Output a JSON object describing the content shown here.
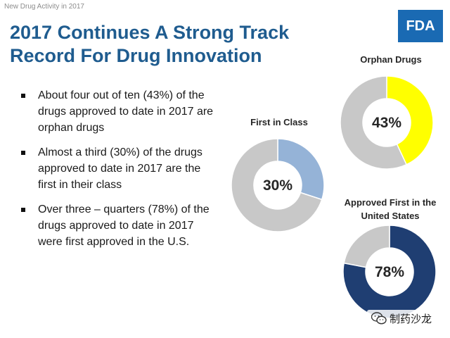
{
  "header": {
    "section": "New Drug Activity in 2017"
  },
  "title": {
    "line1": "2017 Continues A Strong Track",
    "line2": "Record For Drug Innovation"
  },
  "logo": {
    "text": "FDA",
    "color": "#1a6ab3"
  },
  "bullets": [
    "About four out of ten (43%) of the drugs approved to date in 2017 are orphan drugs",
    "Almost a third (30%) of the drugs approved to date in 2017 are the first in their class",
    "Over three – quarters (78%) of the drugs approved to date in 2017 were first approved in the U.S."
  ],
  "chart_data": [
    {
      "type": "pie",
      "title": "First in Class",
      "values": [
        30,
        70
      ],
      "center_label": "30%",
      "colors": [
        "#95b3d7",
        "#c8c8c8"
      ]
    },
    {
      "type": "pie",
      "title": "Orphan Drugs",
      "values": [
        43,
        57
      ],
      "center_label": "43%",
      "colors": [
        "#ffff00",
        "#c8c8c8"
      ]
    },
    {
      "type": "pie",
      "title": "Approved First in the United States",
      "values": [
        78,
        22
      ],
      "center_label": "78%",
      "colors": [
        "#1f3e72",
        "#c8c8c8"
      ]
    }
  ],
  "watermark": {
    "text": "制药沙龙",
    "icon": "wechat-icon"
  }
}
